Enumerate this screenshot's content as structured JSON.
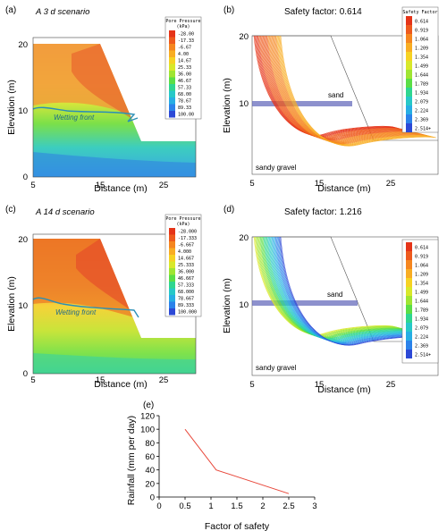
{
  "chart_data": [
    {
      "type": "heatmap",
      "panel": "(a)",
      "scenario": "A 3 d scenario",
      "xlabel": "Distance (m)",
      "ylabel": "Elevation (m)",
      "x_ticks": [
        "5",
        "15",
        "25"
      ],
      "y_ticks": [
        "0",
        "10",
        "20"
      ],
      "annotation": "Wetting front",
      "legend_title": "Pore Pressure",
      "legend_unit": "(kPa)",
      "legend_values": [
        "-28.00",
        "-17.33",
        "-6.67",
        "4.00",
        "14.67",
        "25.33",
        "36.00",
        "46.67",
        "57.33",
        "68.00",
        "78.67",
        "89.33",
        "100.00"
      ],
      "legend_colors": [
        "#e53418",
        "#ee5a1d",
        "#f5861f",
        "#f8ad23",
        "#f6d223",
        "#d8e82a",
        "#9fe532",
        "#5bde46",
        "#2fd690",
        "#27c8c8",
        "#27aee4",
        "#2b82ea",
        "#2c49d6"
      ]
    },
    {
      "type": "scatter",
      "panel": "(b)",
      "title": "Safety factor: 0.614",
      "xlabel": "Distance (m)",
      "ylabel": "Elevation (m)",
      "x_ticks": [
        "5",
        "15",
        "25"
      ],
      "y_ticks": [
        "10",
        "20"
      ],
      "labels": [
        "sand",
        "sandy gravel"
      ],
      "legend_title": "Safety Factor",
      "legend_values": [
        "0.614",
        "0.919",
        "1.064",
        "1.209",
        "1.354",
        "1.499",
        "1.644",
        "1.789",
        "1.934",
        "2.079",
        "2.224",
        "2.369",
        "2.514+"
      ],
      "legend_colors": [
        "#e53418",
        "#ee5a1d",
        "#f5861f",
        "#f8ad23",
        "#f6d223",
        "#d8e82a",
        "#9fe532",
        "#5bde46",
        "#2fd690",
        "#27c8c8",
        "#27aee4",
        "#2b82ea",
        "#2c49d6"
      ]
    },
    {
      "type": "heatmap",
      "panel": "(c)",
      "scenario": "A 14 d scenario",
      "xlabel": "Distance (m)",
      "ylabel": "Elevation (m)",
      "x_ticks": [
        "5",
        "15",
        "25"
      ],
      "y_ticks": [
        "0",
        "10",
        "20"
      ],
      "annotation": "Wetting front",
      "legend_title": "Pore Pressure",
      "legend_unit": "(kPa)",
      "legend_values": [
        "-28.000",
        "-17.333",
        "-6.667",
        "4.000",
        "14.667",
        "25.333",
        "36.000",
        "46.667",
        "57.333",
        "68.000",
        "78.667",
        "89.333",
        "100.000"
      ],
      "legend_colors": [
        "#e53418",
        "#ee5a1d",
        "#f5861f",
        "#f8ad23",
        "#f6d223",
        "#d8e82a",
        "#9fe532",
        "#5bde46",
        "#2fd690",
        "#27c8c8",
        "#27aee4",
        "#2b82ea",
        "#2c49d6"
      ]
    },
    {
      "type": "scatter",
      "panel": "(d)",
      "title": "Safety factor: 1.216",
      "xlabel": "Distance (m)",
      "ylabel": "Elevation (m)",
      "x_ticks": [
        "5",
        "15",
        "25"
      ],
      "y_ticks": [
        "10",
        "20"
      ],
      "labels": [
        "sand",
        "sandy gravel"
      ],
      "legend_values": [
        "0.614",
        "0.919",
        "1.064",
        "1.209",
        "1.354",
        "1.499",
        "1.644",
        "1.789",
        "1.934",
        "2.079",
        "2.224",
        "2.369",
        "2.514+"
      ],
      "legend_colors": [
        "#e53418",
        "#ee5a1d",
        "#f5861f",
        "#f8ad23",
        "#f6d223",
        "#d8e82a",
        "#9fe532",
        "#5bde46",
        "#2fd690",
        "#27c8c8",
        "#27aee4",
        "#2b82ea",
        "#2c49d6"
      ]
    },
    {
      "type": "line",
      "panel": "(e)",
      "xlabel": "Factor of safety",
      "ylabel": "Rainfall (mm per day)",
      "xlim": [
        0,
        3
      ],
      "ylim": [
        0,
        120
      ],
      "x_ticks": [
        "0",
        "0.5",
        "1",
        "1.5",
        "2",
        "2.5",
        "3"
      ],
      "y_ticks": [
        "0",
        "20",
        "40",
        "60",
        "80",
        "100",
        "120"
      ],
      "x": [
        0.5,
        1.1,
        2.5
      ],
      "y": [
        100,
        40,
        5
      ],
      "line_color": "#e8473a"
    }
  ]
}
